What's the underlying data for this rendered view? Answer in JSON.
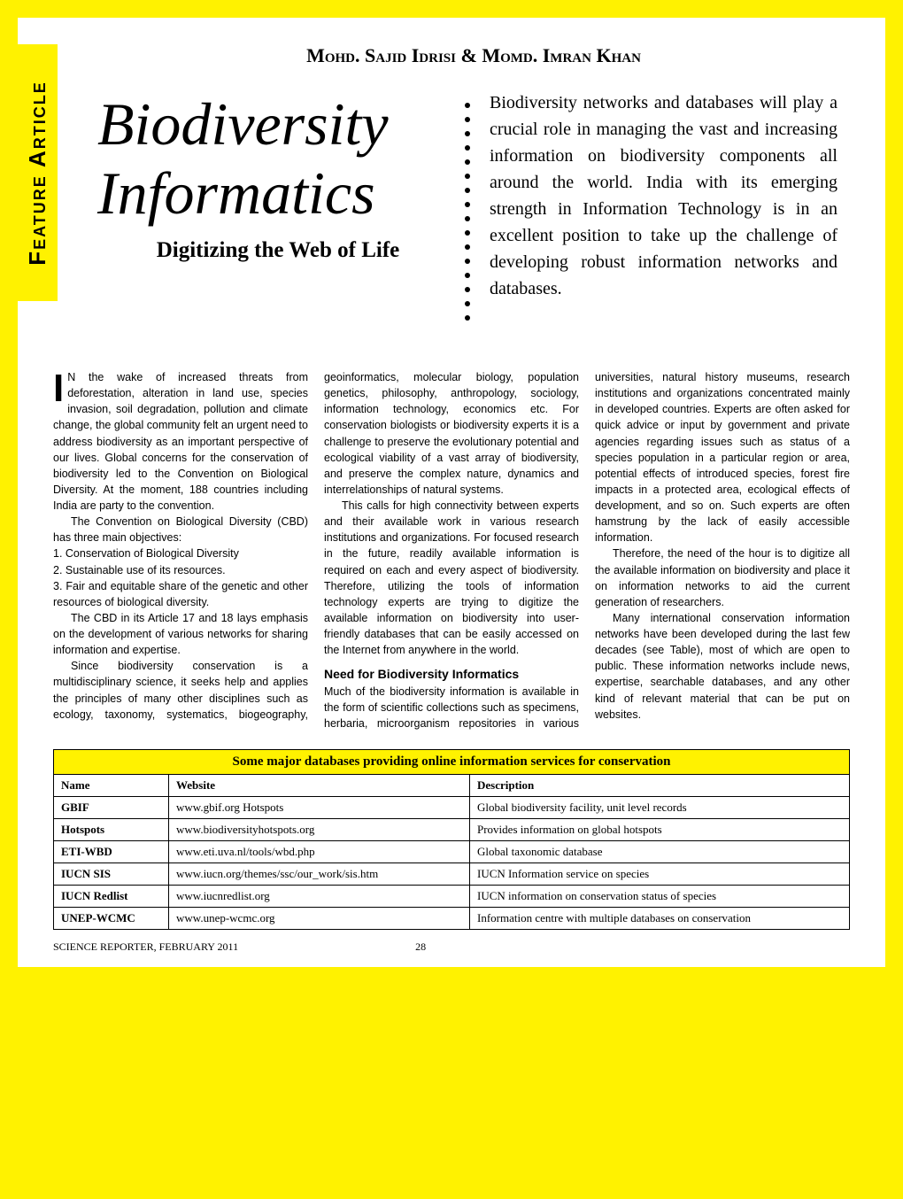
{
  "sidebar_label": "Feature Article",
  "authors": "Mohd. Sajid Idrisi & Momd. Imran Khan",
  "title_line1": "Biodiversity",
  "title_line2": "Informatics",
  "subtitle": "Digitizing the Web of Life",
  "intro": "Biodiversity networks and databases will play a crucial role in managing the vast and increasing information on biodiversity components all around the world. India with its emerging strength in Information Technology is in an excellent position to take up the challenge of developing robust information networks and databases.",
  "dropcap": "I",
  "p1": "N the wake of increased threats from deforestation, alteration in land use, species invasion, soil degradation, pollution and climate change, the global community felt an urgent need to address biodiversity as an important perspective of our lives. Global concerns for the conservation of biodiversity led to the Convention on Biological Diversity. At the moment, 188 countries including India are party to the convention.",
  "p2": "The Convention on Biological Diversity (CBD) has three main objectives:",
  "obj1": "1. Conservation of Biological Diversity",
  "obj2": "2. Sustainable use of its resources.",
  "obj3": "3. Fair and equitable share of the genetic and other resources of biological diversity.",
  "p3": "The CBD in its Article 17 and 18 lays emphasis on the development of various networks for sharing information and expertise.",
  "p4": "Since biodiversity conservation is a multidisciplinary science, it seeks help and applies the principles of many other disciplines such as ecology, taxonomy, systematics, biogeography, geoinformatics, molecular biology, population genetics, philosophy, anthropology, sociology, information technology, economics etc. For conservation biologists or biodiversity experts it is a challenge to preserve the evolutionary potential and ecological viability of a vast array of biodiversity, and preserve the complex nature, dynamics and interrelationships of natural systems.",
  "p5": "This calls for high connectivity between experts and their available work in various research institutions and organizations. For focused research in the future, readily available information is required on each and every aspect of biodiversity. Therefore, utilizing the tools of information technology experts are trying to digitize the available information on biodiversity into user-friendly databases that can be easily accessed on the Internet from anywhere in the world.",
  "subhead1": "Need for Biodiversity Informatics",
  "p6": "Much of the biodiversity information is available in the form of scientific collections such as specimens, herbaria, microorganism repositories in various universities, natural history museums, research institutions and organizations concentrated mainly in developed countries. Experts are often asked for quick advice or input by government and private agencies regarding issues such as status of a species population in a particular region or area, potential effects of introduced species, forest fire impacts in a protected area, ecological effects of development, and so on. Such experts are often hamstrung by the lack of easily accessible information.",
  "p7": "Therefore, the need of the hour is to digitize all the available information on biodiversity and place it on information networks to aid the current generation of researchers.",
  "p8": "Many international conservation information networks have been developed during the last few decades (see Table), most of which are open to public. These information networks include news, expertise, searchable databases, and any other kind of relevant material that can be put on websites.",
  "table": {
    "caption": "Some major databases providing online information services for conservation",
    "columns": [
      "Name",
      "Website",
      "Description"
    ],
    "rows": [
      {
        "name": "GBIF",
        "site": "www.gbif.org Hotspots",
        "desc": "Global biodiversity facility, unit level records"
      },
      {
        "name": "Hotspots",
        "site": "www.biodiversityhotspots.org",
        "desc": "Provides information on global hotspots"
      },
      {
        "name": "ETI-WBD",
        "site": "www.eti.uva.nl/tools/wbd.php",
        "desc": "Global taxonomic database"
      },
      {
        "name": "IUCN SIS",
        "site": "www.iucn.org/themes/ssc/our_work/sis.htm",
        "desc": "IUCN Information service on species"
      },
      {
        "name": "IUCN Redlist",
        "site": "www.iucnredlist.org",
        "desc": "IUCN information on conservation status of species"
      },
      {
        "name": "UNEP-WCMC",
        "site": "www.unep-wcmc.org",
        "desc": "Information centre with multiple databases on conservation"
      }
    ]
  },
  "footer_source": "SCIENCE REPORTER, FEBRUARY 2011",
  "footer_page": "28",
  "colors": {
    "page_bg": "#ffffff",
    "outer_bg": "#fff200",
    "accent": "#fff200",
    "text": "#000000",
    "border": "#000000"
  }
}
